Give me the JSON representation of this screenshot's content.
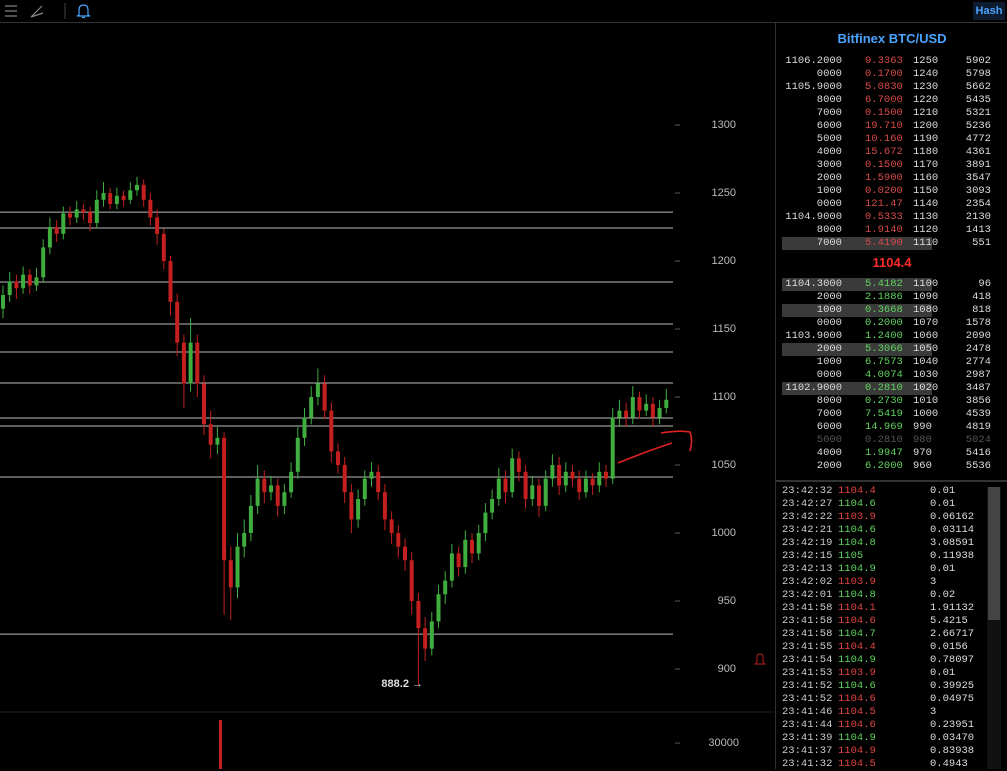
{
  "toolbar": {
    "button": "Hash"
  },
  "chart": {
    "ylim": [
      868.4,
      1374.3
    ],
    "yticks": [
      900,
      950,
      1000,
      1050,
      1100,
      1150,
      1200,
      1250,
      1300
    ],
    "levels": [
      1236,
      1224.3,
      1184.6,
      1153.7,
      1133.1,
      1110.3,
      1084.6,
      1078.7,
      1041.2,
      925.7
    ],
    "candles": [
      [
        1165,
        1182,
        1158,
        1175
      ],
      [
        1175,
        1192,
        1170,
        1185
      ],
      [
        1185,
        1190,
        1172,
        1180
      ],
      [
        1180,
        1196,
        1176,
        1190
      ],
      [
        1190,
        1194,
        1176,
        1182
      ],
      [
        1182,
        1195,
        1178,
        1188
      ],
      [
        1188,
        1216,
        1184,
        1210
      ],
      [
        1210,
        1232,
        1205,
        1225
      ],
      [
        1225,
        1230,
        1214,
        1220
      ],
      [
        1220,
        1240,
        1216,
        1235
      ],
      [
        1235,
        1240,
        1226,
        1232
      ],
      [
        1232,
        1244,
        1228,
        1238
      ],
      [
        1238,
        1242,
        1230,
        1236
      ],
      [
        1236,
        1240,
        1222,
        1228
      ],
      [
        1228,
        1252,
        1224,
        1245
      ],
      [
        1245,
        1258,
        1240,
        1250
      ],
      [
        1250,
        1254,
        1238,
        1242
      ],
      [
        1242,
        1254,
        1238,
        1248
      ],
      [
        1248,
        1252,
        1240,
        1245
      ],
      [
        1245,
        1258,
        1242,
        1252
      ],
      [
        1252,
        1262,
        1248,
        1256
      ],
      [
        1256,
        1260,
        1240,
        1245
      ],
      [
        1245,
        1250,
        1226,
        1232
      ],
      [
        1232,
        1238,
        1212,
        1220
      ],
      [
        1220,
        1224,
        1194,
        1200
      ],
      [
        1200,
        1204,
        1160,
        1170
      ],
      [
        1170,
        1176,
        1130,
        1140
      ],
      [
        1140,
        1146,
        1092,
        1110
      ],
      [
        1110,
        1158,
        1104,
        1140
      ],
      [
        1140,
        1146,
        1100,
        1110
      ],
      [
        1110,
        1116,
        1072,
        1080
      ],
      [
        1080,
        1090,
        1055,
        1065
      ],
      [
        1065,
        1078,
        1058,
        1070
      ],
      [
        1070,
        1074,
        940,
        980
      ],
      [
        980,
        990,
        936,
        960
      ],
      [
        960,
        1000,
        952,
        990
      ],
      [
        990,
        1010,
        982,
        1000
      ],
      [
        1000,
        1028,
        994,
        1020
      ],
      [
        1020,
        1050,
        1014,
        1040
      ],
      [
        1040,
        1046,
        1022,
        1030
      ],
      [
        1030,
        1042,
        1024,
        1035
      ],
      [
        1035,
        1040,
        1012,
        1020
      ],
      [
        1020,
        1036,
        1014,
        1030
      ],
      [
        1030,
        1052,
        1026,
        1045
      ],
      [
        1045,
        1078,
        1040,
        1070
      ],
      [
        1070,
        1092,
        1064,
        1085
      ],
      [
        1085,
        1108,
        1080,
        1100
      ],
      [
        1100,
        1121,
        1094,
        1110
      ],
      [
        1110,
        1116,
        1084,
        1090
      ],
      [
        1090,
        1096,
        1052,
        1060
      ],
      [
        1060,
        1066,
        1044,
        1050
      ],
      [
        1050,
        1056,
        1022,
        1030
      ],
      [
        1030,
        1036,
        1000,
        1010
      ],
      [
        1010,
        1032,
        1004,
        1025
      ],
      [
        1025,
        1046,
        1020,
        1040
      ],
      [
        1040,
        1052,
        1034,
        1045
      ],
      [
        1045,
        1050,
        1024,
        1030
      ],
      [
        1030,
        1036,
        1002,
        1010
      ],
      [
        1010,
        1016,
        992,
        1000
      ],
      [
        1000,
        1006,
        982,
        990
      ],
      [
        990,
        996,
        972,
        980
      ],
      [
        980,
        986,
        940,
        950
      ],
      [
        950,
        956,
        888.2,
        930
      ],
      [
        930,
        938,
        906,
        915
      ],
      [
        915,
        942,
        910,
        935
      ],
      [
        935,
        962,
        930,
        955
      ],
      [
        955,
        972,
        948,
        965
      ],
      [
        965,
        992,
        960,
        985
      ],
      [
        985,
        990,
        968,
        975
      ],
      [
        975,
        1002,
        970,
        995
      ],
      [
        995,
        1000,
        978,
        985
      ],
      [
        985,
        1006,
        980,
        1000
      ],
      [
        1000,
        1022,
        994,
        1015
      ],
      [
        1015,
        1032,
        1010,
        1025
      ],
      [
        1025,
        1048,
        1020,
        1040
      ],
      [
        1040,
        1046,
        1022,
        1030
      ],
      [
        1030,
        1062,
        1026,
        1055
      ],
      [
        1055,
        1060,
        1038,
        1045
      ],
      [
        1045,
        1050,
        1018,
        1025
      ],
      [
        1025,
        1042,
        1020,
        1035
      ],
      [
        1035,
        1040,
        1012,
        1020
      ],
      [
        1020,
        1046,
        1016,
        1040
      ],
      [
        1040,
        1058,
        1034,
        1050
      ],
      [
        1050,
        1056,
        1028,
        1035
      ],
      [
        1035,
        1052,
        1030,
        1045
      ],
      [
        1045,
        1050,
        1034,
        1040
      ],
      [
        1040,
        1046,
        1024,
        1030
      ],
      [
        1030,
        1046,
        1026,
        1040
      ],
      [
        1040,
        1044,
        1028,
        1035
      ],
      [
        1035,
        1052,
        1030,
        1045
      ],
      [
        1045,
        1050,
        1034,
        1040
      ],
      [
        1040,
        1092,
        1036,
        1085
      ],
      [
        1085,
        1098,
        1078,
        1090
      ],
      [
        1090,
        1096,
        1078,
        1085
      ],
      [
        1085,
        1108,
        1080,
        1100
      ],
      [
        1100,
        1104,
        1084,
        1090
      ],
      [
        1090,
        1102,
        1086,
        1095
      ],
      [
        1095,
        1100,
        1078,
        1085
      ],
      [
        1085,
        1098,
        1080,
        1092
      ],
      [
        1092,
        1106,
        1088,
        1098
      ]
    ],
    "up_color": "#3fae3f",
    "down_color": "#c42020",
    "low_label": "888.2 →",
    "volume": {
      "ylim": [
        0,
        66000
      ],
      "yticks": [
        30000
      ],
      "values": [
        56700
      ]
    }
  },
  "orderbook": {
    "title": "Bitfinex BTC/USD",
    "asks": [
      [
        "1106.2000",
        "9.3363",
        1250,
        5902
      ],
      [
        "0000",
        "0.1700",
        1240,
        5798
      ],
      [
        "1105.9000",
        "5.0830",
        1230,
        5662
      ],
      [
        "8000",
        "6.7000",
        1220,
        5435
      ],
      [
        "7000",
        "0.1500",
        1210,
        5321
      ],
      [
        "6000",
        "19.710",
        1200,
        5236
      ],
      [
        "5000",
        "10.160",
        1190,
        4772
      ],
      [
        "4000",
        "15.672",
        1180,
        4361
      ],
      [
        "3000",
        "0.1500",
        1170,
        3891
      ],
      [
        "2000",
        "1.5900",
        1160,
        3547
      ],
      [
        "1000",
        "0.0200",
        1150,
        3093
      ],
      [
        "0000",
        "121.47",
        1140,
        2354
      ],
      [
        "1104.9000",
        "0.5333",
        1130,
        2130
      ],
      [
        "8000",
        "1.9140",
        1120,
        1413
      ],
      [
        "7000",
        "5.4190",
        1110,
        551
      ]
    ],
    "last": 1104.4,
    "bids": [
      [
        "1104.3000",
        "5.4182",
        1100,
        96
      ],
      [
        "2000",
        "2.1886",
        1090,
        418
      ],
      [
        "1000",
        "0.3668",
        1080,
        818
      ],
      [
        "0000",
        "0.2000",
        1070,
        1578
      ],
      [
        "1103.9000",
        "1.2400",
        1060,
        2090
      ],
      [
        "2000",
        "5.3066",
        1050,
        2478
      ],
      [
        "1000",
        "6.7573",
        1040,
        2774
      ],
      [
        "0000",
        "4.0074",
        1030,
        2987
      ],
      [
        "1102.9000",
        "0.2810",
        1020,
        3487
      ],
      [
        "8000",
        "0.2730",
        1010,
        3856
      ],
      [
        "7000",
        "7.5419",
        1000,
        4539
      ],
      [
        "6000",
        "14.969",
        990,
        4819
      ],
      [
        "5000",
        "0.2810",
        980,
        5024
      ],
      [
        "4000",
        "1.9947",
        970,
        5416
      ],
      [
        "2000",
        "6.2000",
        960,
        5536
      ]
    ]
  },
  "trades": [
    {
      "time": "23:42:32",
      "price": 1104.4,
      "amount": "0.01",
      "color": "#e04444"
    },
    {
      "time": "23:42:27",
      "price": 1104.6,
      "amount": "0.01",
      "color": "#5fd35f"
    },
    {
      "time": "23:42:22",
      "price": 1103.9,
      "amount": "0.06162",
      "color": "#e04444"
    },
    {
      "time": "23:42:21",
      "price": 1104.6,
      "amount": "0.03114",
      "color": "#5fd35f"
    },
    {
      "time": "23:42:19",
      "price": 1104.8,
      "amount": "3.08591",
      "color": "#5fd35f"
    },
    {
      "time": "23:42:15",
      "price": 1105,
      "amount": "0.11938",
      "color": "#5fd35f"
    },
    {
      "time": "23:42:13",
      "price": 1104.9,
      "amount": "0.01",
      "color": "#5fd35f"
    },
    {
      "time": "23:42:02",
      "price": 1103.9,
      "amount": "3",
      "color": "#e04444"
    },
    {
      "time": "23:42:01",
      "price": 1104.8,
      "amount": "0.02",
      "color": "#5fd35f"
    },
    {
      "time": "23:41:58",
      "price": 1104.1,
      "amount": "1.91132",
      "color": "#e04444"
    },
    {
      "time": "23:41:58",
      "price": 1104.6,
      "amount": "5.4215",
      "color": "#e04444"
    },
    {
      "time": "23:41:58",
      "price": 1104.7,
      "amount": "2.66717",
      "color": "#5fd35f"
    },
    {
      "time": "23:41:55",
      "price": 1104.4,
      "amount": "0.0156",
      "color": "#e04444"
    },
    {
      "time": "23:41:54",
      "price": 1104.9,
      "amount": "0.78097",
      "color": "#5fd35f"
    },
    {
      "time": "23:41:53",
      "price": 1103.9,
      "amount": "0.01",
      "color": "#e04444"
    },
    {
      "time": "23:41:52",
      "price": 1104.6,
      "amount": "0.39925",
      "color": "#5fd35f"
    },
    {
      "time": "23:41:52",
      "price": 1104.6,
      "amount": "0.04975",
      "color": "#e04444"
    },
    {
      "time": "23:41:46",
      "price": 1104.5,
      "amount": "3",
      "color": "#e04444"
    },
    {
      "time": "23:41:44",
      "price": 1104.6,
      "amount": "0.23951",
      "color": "#e04444"
    },
    {
      "time": "23:41:39",
      "price": 1104.9,
      "amount": "0.03470",
      "color": "#5fd35f"
    },
    {
      "time": "23:41:37",
      "price": 1104.9,
      "amount": "0.83938",
      "color": "#e04444"
    },
    {
      "time": "23:41:32",
      "price": 1104.5,
      "amount": "0.4943",
      "color": "#e04444"
    }
  ]
}
